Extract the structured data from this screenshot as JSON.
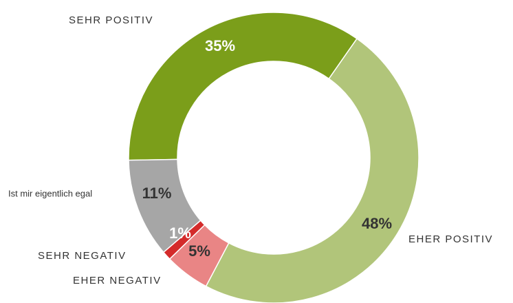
{
  "chart_data": {
    "type": "donut",
    "categories": [
      "SEHR POSITIV",
      "EHER POSITIV",
      "EHER NEGATIV",
      "SEHR NEGATIV",
      "Ist mir eigentlich egal"
    ],
    "values": [
      35,
      48,
      5,
      1,
      11
    ],
    "value_labels": [
      "35%",
      "48%",
      "5%",
      "1%",
      "11%"
    ],
    "colors": [
      "#7b9e1a",
      "#b1c57a",
      "#e98585",
      "#d42b2b",
      "#a6a6a6"
    ]
  }
}
